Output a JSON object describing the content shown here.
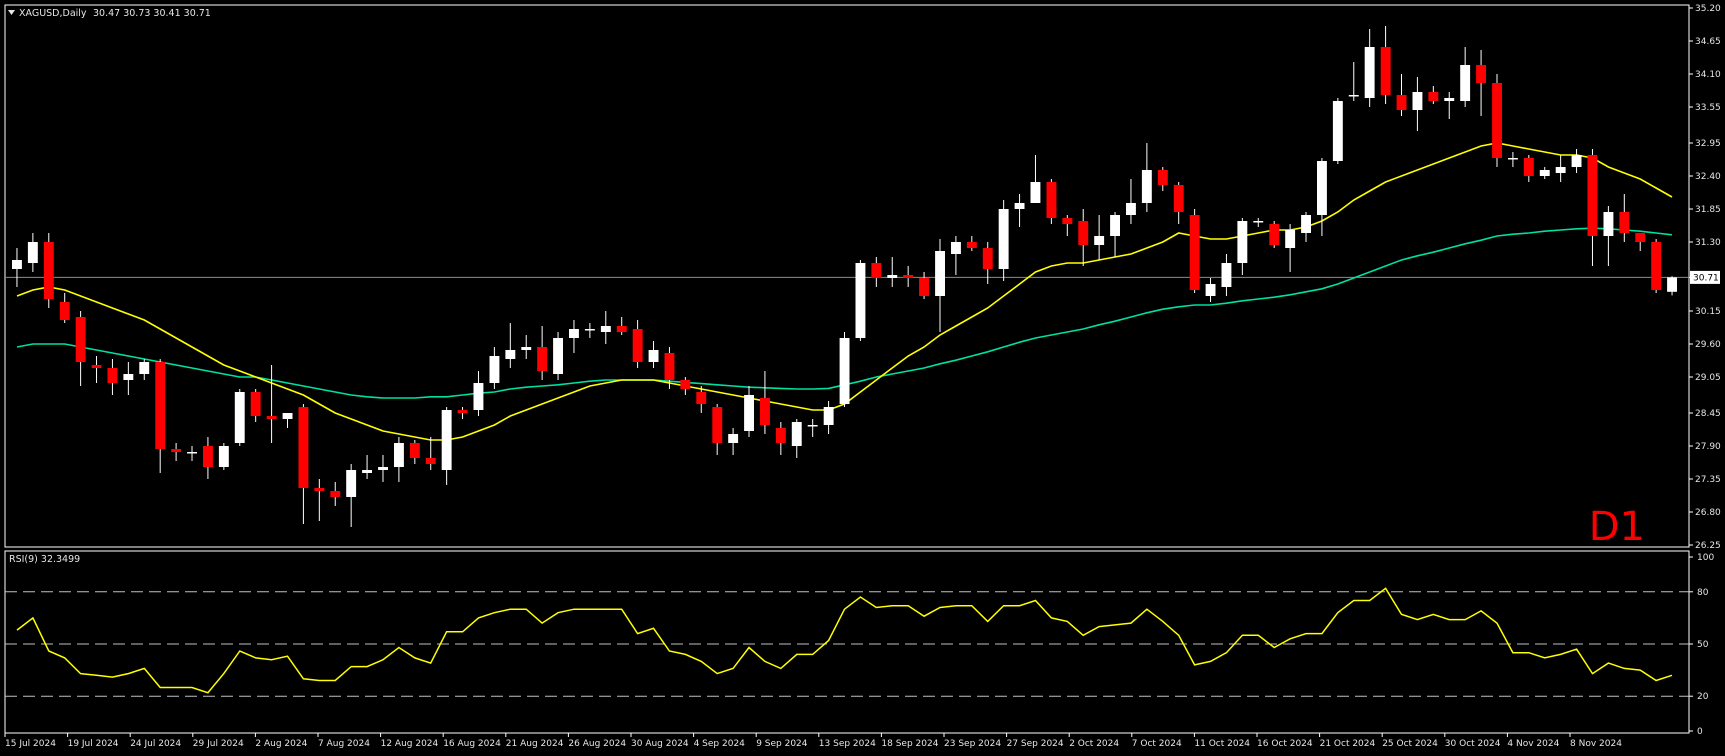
{
  "header": {
    "symbol": "XAGUSD,Daily",
    "ohlc": "30.47 30.73 30.41 30.71",
    "timeframe_badge": "D1"
  },
  "rsi_panel": {
    "label": "RSI(9) 32.3499",
    "levels_label": [
      "100",
      "80",
      "50",
      "20",
      "0"
    ]
  },
  "colors": {
    "background": "#000000",
    "bull_candle": "#ffffff",
    "bear_candle": "#ff0000",
    "ma_fast": "#ffff00",
    "ma_slow": "#00e0a0",
    "rsi_line": "#ffff00",
    "current_price_line": "#8c8c8c"
  },
  "chart_data": [
    {
      "type": "candlestick",
      "title": "XAGUSD,Daily",
      "current_price": 30.71,
      "price_axis": {
        "ylim": [
          26.25,
          35.2
        ],
        "ticks": [
          "35.20",
          "34.65",
          "34.10",
          "33.55",
          "32.95",
          "32.40",
          "31.85",
          "31.30",
          "30.71",
          "30.15",
          "29.60",
          "29.05",
          "28.45",
          "27.90",
          "27.35",
          "26.80",
          "26.25"
        ]
      },
      "x_axis_labels": [
        "15 Jul 2024",
        "19 Jul 2024",
        "24 Jul 2024",
        "29 Jul 2024",
        "2 Aug 2024",
        "7 Aug 2024",
        "12 Aug 2024",
        "16 Aug 2024",
        "21 Aug 2024",
        "26 Aug 2024",
        "30 Aug 2024",
        "4 Sep 2024",
        "9 Sep 2024",
        "13 Sep 2024",
        "18 Sep 2024",
        "23 Sep 2024",
        "27 Sep 2024",
        "2 Oct 2024",
        "7 Oct 2024",
        "11 Oct 2024",
        "16 Oct 2024",
        "21 Oct 2024",
        "25 Oct 2024",
        "30 Oct 2024",
        "4 Nov 2024",
        "8 Nov 2024"
      ],
      "candles": [
        {
          "o": 30.85,
          "h": 31.2,
          "l": 30.55,
          "c": 31.0
        },
        {
          "o": 30.95,
          "h": 31.45,
          "l": 30.8,
          "c": 31.3
        },
        {
          "o": 31.3,
          "h": 31.45,
          "l": 30.2,
          "c": 30.35
        },
        {
          "o": 30.3,
          "h": 30.45,
          "l": 29.95,
          "c": 30.0
        },
        {
          "o": 30.05,
          "h": 30.15,
          "l": 28.9,
          "c": 29.3
        },
        {
          "o": 29.25,
          "h": 29.4,
          "l": 28.95,
          "c": 29.2
        },
        {
          "o": 29.2,
          "h": 29.35,
          "l": 28.75,
          "c": 28.95
        },
        {
          "o": 29.0,
          "h": 29.3,
          "l": 28.75,
          "c": 29.1
        },
        {
          "o": 29.1,
          "h": 29.35,
          "l": 29.0,
          "c": 29.3
        },
        {
          "o": 29.3,
          "h": 29.35,
          "l": 27.45,
          "c": 27.85
        },
        {
          "o": 27.85,
          "h": 27.95,
          "l": 27.65,
          "c": 27.8
        },
        {
          "o": 27.8,
          "h": 27.9,
          "l": 27.65,
          "c": 27.8
        },
        {
          "o": 27.9,
          "h": 28.05,
          "l": 27.35,
          "c": 27.55
        },
        {
          "o": 27.55,
          "h": 27.95,
          "l": 27.5,
          "c": 27.9
        },
        {
          "o": 27.95,
          "h": 28.85,
          "l": 27.9,
          "c": 28.8
        },
        {
          "o": 28.8,
          "h": 28.85,
          "l": 28.3,
          "c": 28.4
        },
        {
          "o": 28.4,
          "h": 29.25,
          "l": 27.95,
          "c": 28.35
        },
        {
          "o": 28.35,
          "h": 28.45,
          "l": 28.2,
          "c": 28.45
        },
        {
          "o": 28.55,
          "h": 28.6,
          "l": 26.6,
          "c": 27.2
        },
        {
          "o": 27.2,
          "h": 27.35,
          "l": 26.65,
          "c": 27.15
        },
        {
          "o": 27.15,
          "h": 27.3,
          "l": 26.9,
          "c": 27.05
        },
        {
          "o": 27.05,
          "h": 27.6,
          "l": 26.55,
          "c": 27.5
        },
        {
          "o": 27.45,
          "h": 27.75,
          "l": 27.35,
          "c": 27.5
        },
        {
          "o": 27.5,
          "h": 27.75,
          "l": 27.3,
          "c": 27.55
        },
        {
          "o": 27.55,
          "h": 28.05,
          "l": 27.3,
          "c": 27.95
        },
        {
          "o": 27.95,
          "h": 28.0,
          "l": 27.6,
          "c": 27.7
        },
        {
          "o": 27.7,
          "h": 28.05,
          "l": 27.5,
          "c": 27.6
        },
        {
          "o": 27.5,
          "h": 28.55,
          "l": 27.25,
          "c": 28.5
        },
        {
          "o": 28.5,
          "h": 28.55,
          "l": 28.35,
          "c": 28.45
        },
        {
          "o": 28.5,
          "h": 29.15,
          "l": 28.4,
          "c": 28.95
        },
        {
          "o": 28.95,
          "h": 29.55,
          "l": 28.85,
          "c": 29.4
        },
        {
          "o": 29.35,
          "h": 29.95,
          "l": 29.2,
          "c": 29.5
        },
        {
          "o": 29.5,
          "h": 29.75,
          "l": 29.35,
          "c": 29.55
        },
        {
          "o": 29.55,
          "h": 29.9,
          "l": 29.0,
          "c": 29.15
        },
        {
          "o": 29.1,
          "h": 29.8,
          "l": 29.0,
          "c": 29.7
        },
        {
          "o": 29.7,
          "h": 30.0,
          "l": 29.45,
          "c": 29.85
        },
        {
          "o": 29.85,
          "h": 29.95,
          "l": 29.7,
          "c": 29.85
        },
        {
          "o": 29.8,
          "h": 30.15,
          "l": 29.6,
          "c": 29.9
        },
        {
          "o": 29.9,
          "h": 30.05,
          "l": 29.75,
          "c": 29.8
        },
        {
          "o": 29.85,
          "h": 30.0,
          "l": 29.2,
          "c": 29.3
        },
        {
          "o": 29.3,
          "h": 29.65,
          "l": 29.2,
          "c": 29.5
        },
        {
          "o": 29.45,
          "h": 29.55,
          "l": 28.85,
          "c": 29.0
        },
        {
          "o": 29.0,
          "h": 29.05,
          "l": 28.75,
          "c": 28.85
        },
        {
          "o": 28.8,
          "h": 28.9,
          "l": 28.45,
          "c": 28.6
        },
        {
          "o": 28.55,
          "h": 28.6,
          "l": 27.75,
          "c": 27.95
        },
        {
          "o": 27.95,
          "h": 28.2,
          "l": 27.75,
          "c": 28.1
        },
        {
          "o": 28.15,
          "h": 28.9,
          "l": 28.05,
          "c": 28.75
        },
        {
          "o": 28.7,
          "h": 29.15,
          "l": 28.1,
          "c": 28.25
        },
        {
          "o": 28.2,
          "h": 28.3,
          "l": 27.75,
          "c": 27.95
        },
        {
          "o": 27.9,
          "h": 28.35,
          "l": 27.7,
          "c": 28.3
        },
        {
          "o": 28.25,
          "h": 28.35,
          "l": 28.05,
          "c": 28.25
        },
        {
          "o": 28.25,
          "h": 28.65,
          "l": 28.1,
          "c": 28.55
        },
        {
          "o": 28.6,
          "h": 29.8,
          "l": 28.55,
          "c": 29.7
        },
        {
          "o": 29.7,
          "h": 31.0,
          "l": 29.65,
          "c": 30.95
        },
        {
          "o": 30.95,
          "h": 31.05,
          "l": 30.55,
          "c": 30.7
        },
        {
          "o": 30.7,
          "h": 31.05,
          "l": 30.55,
          "c": 30.75
        },
        {
          "o": 30.75,
          "h": 30.9,
          "l": 30.55,
          "c": 30.7
        },
        {
          "o": 30.7,
          "h": 30.8,
          "l": 30.35,
          "c": 30.4
        },
        {
          "o": 30.4,
          "h": 31.35,
          "l": 29.8,
          "c": 31.15
        },
        {
          "o": 31.1,
          "h": 31.4,
          "l": 30.75,
          "c": 31.3
        },
        {
          "o": 31.3,
          "h": 31.4,
          "l": 31.15,
          "c": 31.2
        },
        {
          "o": 31.2,
          "h": 31.3,
          "l": 30.6,
          "c": 30.85
        },
        {
          "o": 30.85,
          "h": 32.0,
          "l": 30.65,
          "c": 31.85
        },
        {
          "o": 31.85,
          "h": 32.1,
          "l": 31.55,
          "c": 31.95
        },
        {
          "o": 31.95,
          "h": 32.75,
          "l": 31.95,
          "c": 32.3
        },
        {
          "o": 32.3,
          "h": 32.35,
          "l": 31.6,
          "c": 31.7
        },
        {
          "o": 31.7,
          "h": 31.75,
          "l": 31.4,
          "c": 31.6
        },
        {
          "o": 31.65,
          "h": 31.85,
          "l": 30.9,
          "c": 31.25
        },
        {
          "o": 31.25,
          "h": 31.75,
          "l": 31.0,
          "c": 31.4
        },
        {
          "o": 31.4,
          "h": 31.8,
          "l": 31.05,
          "c": 31.75
        },
        {
          "o": 31.75,
          "h": 32.35,
          "l": 31.6,
          "c": 31.95
        },
        {
          "o": 31.95,
          "h": 32.95,
          "l": 31.8,
          "c": 32.5
        },
        {
          "o": 32.5,
          "h": 32.55,
          "l": 32.15,
          "c": 32.25
        },
        {
          "o": 32.25,
          "h": 32.3,
          "l": 31.6,
          "c": 31.8
        },
        {
          "o": 31.75,
          "h": 31.85,
          "l": 30.45,
          "c": 30.5
        },
        {
          "o": 30.4,
          "h": 30.7,
          "l": 30.3,
          "c": 30.6
        },
        {
          "o": 30.55,
          "h": 31.1,
          "l": 30.4,
          "c": 30.95
        },
        {
          "o": 30.95,
          "h": 31.7,
          "l": 30.75,
          "c": 31.65
        },
        {
          "o": 31.65,
          "h": 31.7,
          "l": 31.55,
          "c": 31.65
        },
        {
          "o": 31.6,
          "h": 31.65,
          "l": 31.2,
          "c": 31.25
        },
        {
          "o": 31.2,
          "h": 31.6,
          "l": 30.8,
          "c": 31.5
        },
        {
          "o": 31.45,
          "h": 31.8,
          "l": 31.3,
          "c": 31.75
        },
        {
          "o": 31.75,
          "h": 32.7,
          "l": 31.4,
          "c": 32.65
        },
        {
          "o": 32.65,
          "h": 33.7,
          "l": 32.6,
          "c": 33.65
        },
        {
          "o": 33.75,
          "h": 34.3,
          "l": 33.65,
          "c": 33.75
        },
        {
          "o": 33.7,
          "h": 34.85,
          "l": 33.55,
          "c": 34.55
        },
        {
          "o": 34.55,
          "h": 34.9,
          "l": 33.6,
          "c": 33.75
        },
        {
          "o": 33.75,
          "h": 34.1,
          "l": 33.4,
          "c": 33.5
        },
        {
          "o": 33.5,
          "h": 34.05,
          "l": 33.15,
          "c": 33.8
        },
        {
          "o": 33.8,
          "h": 33.9,
          "l": 33.6,
          "c": 33.65
        },
        {
          "o": 33.65,
          "h": 33.8,
          "l": 33.35,
          "c": 33.7
        },
        {
          "o": 33.65,
          "h": 34.55,
          "l": 33.55,
          "c": 34.25
        },
        {
          "o": 34.25,
          "h": 34.5,
          "l": 33.4,
          "c": 33.95
        },
        {
          "o": 33.95,
          "h": 34.1,
          "l": 32.55,
          "c": 32.7
        },
        {
          "o": 32.7,
          "h": 32.8,
          "l": 32.55,
          "c": 32.7
        },
        {
          "o": 32.7,
          "h": 32.75,
          "l": 32.3,
          "c": 32.4
        },
        {
          "o": 32.4,
          "h": 32.55,
          "l": 32.35,
          "c": 32.5
        },
        {
          "o": 32.45,
          "h": 32.75,
          "l": 32.3,
          "c": 32.55
        },
        {
          "o": 32.55,
          "h": 32.85,
          "l": 32.45,
          "c": 32.75
        },
        {
          "o": 32.75,
          "h": 32.85,
          "l": 30.9,
          "c": 31.4
        },
        {
          "o": 31.4,
          "h": 31.9,
          "l": 30.9,
          "c": 31.8
        },
        {
          "o": 31.8,
          "h": 32.1,
          "l": 31.3,
          "c": 31.45
        },
        {
          "o": 31.45,
          "h": 31.45,
          "l": 31.15,
          "c": 31.3
        },
        {
          "o": 31.3,
          "h": 31.35,
          "l": 30.45,
          "c": 30.5
        },
        {
          "o": 30.47,
          "h": 30.73,
          "l": 30.41,
          "c": 30.71
        }
      ],
      "ma_fast": [
        30.4,
        30.5,
        30.55,
        30.5,
        30.4,
        30.3,
        30.2,
        30.1,
        30.0,
        29.85,
        29.7,
        29.55,
        29.4,
        29.25,
        29.15,
        29.05,
        28.95,
        28.85,
        28.75,
        28.6,
        28.45,
        28.35,
        28.25,
        28.15,
        28.1,
        28.05,
        28.0,
        28.0,
        28.05,
        28.15,
        28.25,
        28.4,
        28.5,
        28.6,
        28.7,
        28.8,
        28.9,
        28.95,
        29.0,
        29.0,
        29.0,
        28.95,
        28.9,
        28.85,
        28.8,
        28.75,
        28.7,
        28.65,
        28.6,
        28.55,
        28.5,
        28.5,
        28.6,
        28.8,
        29.0,
        29.2,
        29.4,
        29.55,
        29.75,
        29.9,
        30.05,
        30.2,
        30.4,
        30.6,
        30.8,
        30.9,
        30.95,
        30.95,
        31.0,
        31.05,
        31.1,
        31.2,
        31.3,
        31.45,
        31.4,
        31.35,
        31.35,
        31.4,
        31.45,
        31.5,
        31.5,
        31.55,
        31.65,
        31.8,
        32.0,
        32.15,
        32.3,
        32.4,
        32.5,
        32.6,
        32.7,
        32.8,
        32.9,
        32.95,
        32.9,
        32.85,
        32.8,
        32.75,
        32.75,
        32.7,
        32.55,
        32.45,
        32.35,
        32.2,
        32.05
      ],
      "ma_slow": [
        29.55,
        29.6,
        29.6,
        29.6,
        29.55,
        29.5,
        29.45,
        29.4,
        29.35,
        29.3,
        29.25,
        29.2,
        29.15,
        29.1,
        29.05,
        29.05,
        29.0,
        28.95,
        28.9,
        28.85,
        28.8,
        28.75,
        28.72,
        28.7,
        28.7,
        28.7,
        28.72,
        28.72,
        28.75,
        28.78,
        28.8,
        28.85,
        28.88,
        28.9,
        28.92,
        28.95,
        28.98,
        29.0,
        29.0,
        29.0,
        29.0,
        28.98,
        28.96,
        28.94,
        28.92,
        28.9,
        28.88,
        28.87,
        28.86,
        28.85,
        28.85,
        28.86,
        28.92,
        28.98,
        29.05,
        29.1,
        29.15,
        29.2,
        29.27,
        29.33,
        29.4,
        29.47,
        29.55,
        29.63,
        29.7,
        29.75,
        29.8,
        29.85,
        29.92,
        29.98,
        30.05,
        30.12,
        30.18,
        30.22,
        30.25,
        30.25,
        30.28,
        30.32,
        30.35,
        30.38,
        30.42,
        30.47,
        30.52,
        30.6,
        30.7,
        30.8,
        30.9,
        31.0,
        31.07,
        31.13,
        31.2,
        31.27,
        31.33,
        31.4,
        31.43,
        31.45,
        31.48,
        31.5,
        31.52,
        31.53,
        31.52,
        31.5,
        31.48,
        31.45,
        31.42
      ],
      "series": [
        {
          "name": "",
          "ref": "ma_fast"
        },
        {
          "name": "",
          "ref": "ma_slow"
        }
      ]
    },
    {
      "type": "line",
      "title": "RSI(9) 32.3499",
      "ylim": [
        0,
        100
      ],
      "levels": [
        20,
        50,
        80
      ],
      "y_ticks": [
        "100",
        "80",
        "50",
        "20",
        "0"
      ],
      "values": [
        58,
        65,
        46,
        42,
        33,
        32,
        31,
        33,
        36,
        25,
        25,
        25,
        22,
        33,
        46,
        42,
        41,
        43,
        30,
        29,
        29,
        37,
        37,
        41,
        48,
        42,
        39,
        57,
        57,
        65,
        68,
        70,
        70,
        62,
        68,
        70,
        70,
        70,
        70,
        56,
        59,
        46,
        44,
        40,
        33,
        36,
        48,
        40,
        36,
        44,
        44,
        52,
        70,
        77,
        71,
        72,
        72,
        66,
        71,
        72,
        72,
        63,
        72,
        72,
        75,
        65,
        63,
        55,
        60,
        61,
        62,
        70,
        63,
        55,
        38,
        40,
        45,
        55,
        55,
        48,
        53,
        56,
        56,
        68,
        75,
        75,
        82,
        67,
        64,
        67,
        64,
        64,
        69,
        62,
        45,
        45,
        42,
        44,
        47,
        33,
        39,
        36,
        35,
        29,
        32
      ]
    }
  ]
}
